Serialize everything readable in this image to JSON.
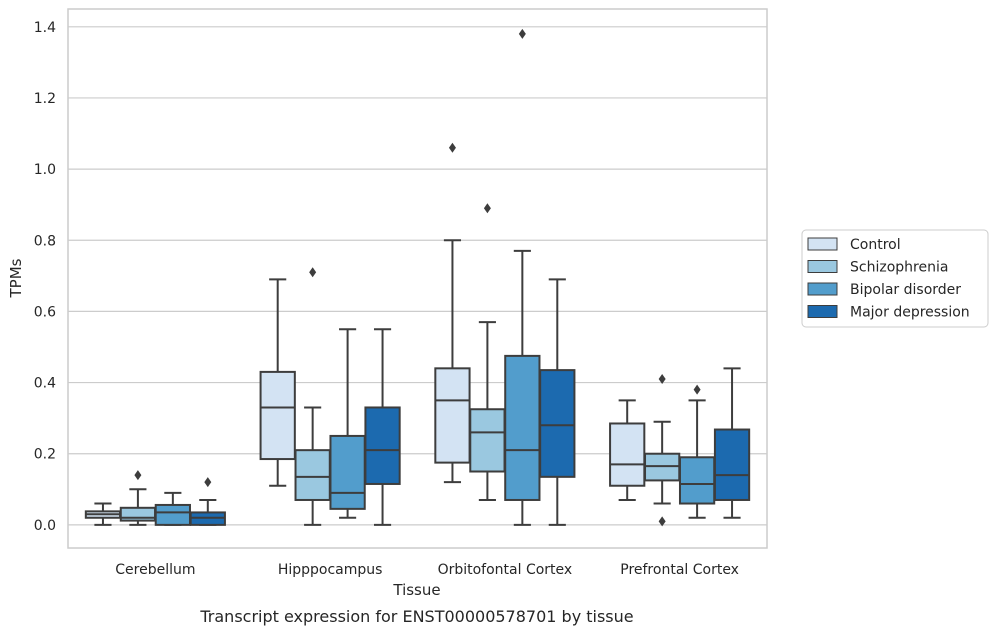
{
  "chart_data": {
    "type": "box",
    "xlabel": "Tissue",
    "ylabel": "TPMs",
    "caption": "Transcript expression for ENST00000578701 by tissue",
    "ylim": [
      -0.065,
      1.45
    ],
    "yticks": [
      "0.0",
      "0.2",
      "0.4",
      "0.6",
      "0.8",
      "1.0",
      "1.2",
      "1.4"
    ],
    "ytick_values": [
      0,
      0.2,
      0.4,
      0.6,
      0.8,
      1.0,
      1.2,
      1.4
    ],
    "grid": true,
    "legend_position": "right",
    "categories": [
      "Cerebellum",
      "Hipppocampus",
      "Orbitofontal Cortex",
      "Prefrontal Cortex"
    ],
    "series": [
      {
        "name": "Control",
        "color": "#d3e3f3",
        "boxes": [
          {
            "whislo": 0.0,
            "q1": 0.02,
            "med": 0.03,
            "q3": 0.038,
            "whishi": 0.06,
            "fliers": []
          },
          {
            "whislo": 0.11,
            "q1": 0.185,
            "med": 0.33,
            "q3": 0.43,
            "whishi": 0.69,
            "fliers": []
          },
          {
            "whislo": 0.12,
            "q1": 0.175,
            "med": 0.35,
            "q3": 0.44,
            "whishi": 0.8,
            "fliers": [
              1.06
            ]
          },
          {
            "whislo": 0.07,
            "q1": 0.11,
            "med": 0.17,
            "q3": 0.285,
            "whishi": 0.35,
            "fliers": []
          }
        ]
      },
      {
        "name": "Schizophrenia",
        "color": "#9ac8e0",
        "boxes": [
          {
            "whislo": 0.0,
            "q1": 0.012,
            "med": 0.02,
            "q3": 0.048,
            "whishi": 0.1,
            "fliers": [
              0.14
            ]
          },
          {
            "whislo": 0.0,
            "q1": 0.07,
            "med": 0.135,
            "q3": 0.21,
            "whishi": 0.33,
            "fliers": [
              0.71
            ]
          },
          {
            "whislo": 0.07,
            "q1": 0.15,
            "med": 0.26,
            "q3": 0.325,
            "whishi": 0.57,
            "fliers": [
              0.89
            ]
          },
          {
            "whislo": 0.06,
            "q1": 0.125,
            "med": 0.165,
            "q3": 0.2,
            "whishi": 0.29,
            "fliers": [
              0.41,
              0.01
            ]
          }
        ]
      },
      {
        "name": "Bipolar disorder",
        "color": "#529dcc",
        "boxes": [
          {
            "whislo": 0.0,
            "q1": 0.0,
            "med": 0.035,
            "q3": 0.056,
            "whishi": 0.09,
            "fliers": []
          },
          {
            "whislo": 0.02,
            "q1": 0.045,
            "med": 0.09,
            "q3": 0.25,
            "whishi": 0.55,
            "fliers": []
          },
          {
            "whislo": 0.0,
            "q1": 0.07,
            "med": 0.21,
            "q3": 0.475,
            "whishi": 0.77,
            "fliers": [
              1.38
            ]
          },
          {
            "whislo": 0.02,
            "q1": 0.06,
            "med": 0.115,
            "q3": 0.19,
            "whishi": 0.35,
            "fliers": [
              0.38
            ]
          }
        ]
      },
      {
        "name": "Major depression",
        "color": "#1c6aaf",
        "boxes": [
          {
            "whislo": 0.0,
            "q1": 0.0,
            "med": 0.02,
            "q3": 0.035,
            "whishi": 0.07,
            "fliers": [
              0.12
            ]
          },
          {
            "whislo": 0.0,
            "q1": 0.115,
            "med": 0.21,
            "q3": 0.33,
            "whishi": 0.55,
            "fliers": []
          },
          {
            "whislo": 0.0,
            "q1": 0.135,
            "med": 0.28,
            "q3": 0.435,
            "whishi": 0.69,
            "fliers": []
          },
          {
            "whislo": 0.02,
            "q1": 0.07,
            "med": 0.14,
            "q3": 0.268,
            "whishi": 0.44,
            "fliers": []
          }
        ]
      }
    ]
  }
}
